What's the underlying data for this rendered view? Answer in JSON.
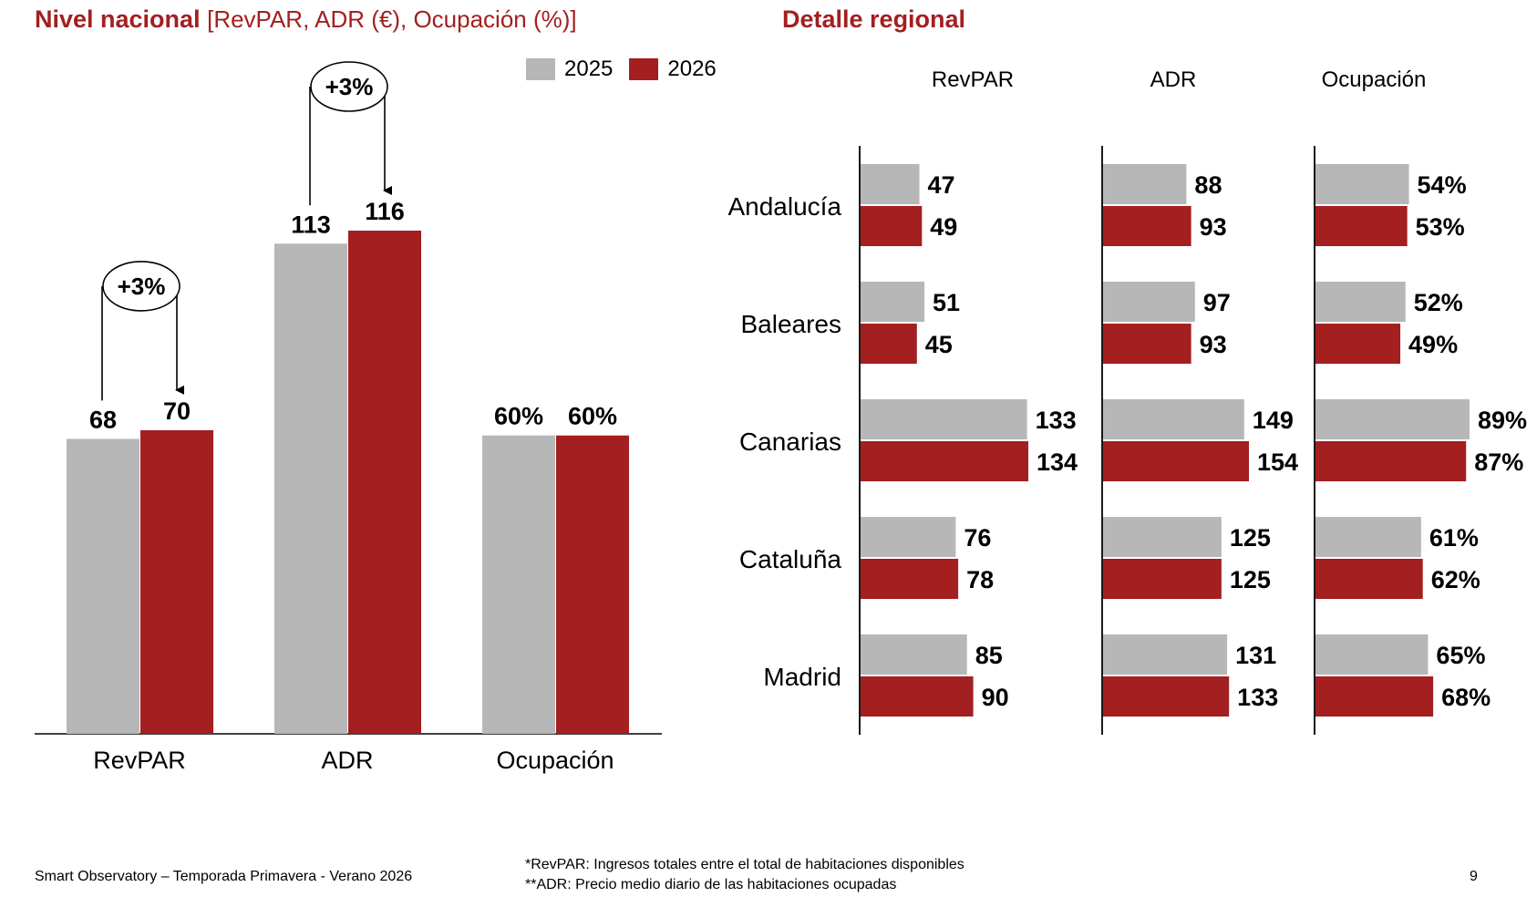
{
  "titles": {
    "national_bold": "Nivel nacional",
    "national_rest": "[RevPAR, ADR (€), Ocupación (%)]",
    "regional": "Detalle regional"
  },
  "legend": [
    {
      "label": "2025",
      "color": "#b7b7b7"
    },
    {
      "label": "2026",
      "color": "#a31f20"
    }
  ],
  "colors": {
    "y2025": "#b7b7b7",
    "y2026": "#a31f20",
    "accent": "#a31f20"
  },
  "chart_data": [
    {
      "type": "bar",
      "categories": [
        "RevPAR",
        "ADR",
        "Ocupación"
      ],
      "series": [
        {
          "name": "2025",
          "values": [
            68,
            113,
            60
          ],
          "labels": [
            "68",
            "113",
            "60%"
          ]
        },
        {
          "name": "2026",
          "values": [
            70,
            116,
            60
          ],
          "labels": [
            "70",
            "116",
            "60%"
          ]
        }
      ],
      "scale_max": 116,
      "annotations": [
        {
          "category": "RevPAR",
          "text": "+3%"
        },
        {
          "category": "ADR",
          "text": "+3%"
        }
      ]
    },
    {
      "type": "bar",
      "orientation": "horizontal",
      "regions": [
        "Andalucía",
        "Baleares",
        "Canarias",
        "Cataluña",
        "Madrid"
      ],
      "panels": [
        {
          "title": "RevPAR",
          "max": 134,
          "v2025": [
            47,
            51,
            133,
            76,
            85
          ],
          "v2026": [
            49,
            45,
            134,
            78,
            90
          ],
          "l2025": [
            "47",
            "51",
            "133",
            "76",
            "85"
          ],
          "l2026": [
            "49",
            "45",
            "134",
            "78",
            "90"
          ]
        },
        {
          "title": "ADR",
          "max": 154,
          "v2025": [
            88,
            97,
            149,
            125,
            131
          ],
          "v2026": [
            93,
            93,
            154,
            125,
            133
          ],
          "l2025": [
            "88",
            "97",
            "149",
            "125",
            "131"
          ],
          "l2026": [
            "93",
            "93",
            "154",
            "125",
            "133"
          ]
        },
        {
          "title": "Ocupación",
          "max": 89,
          "v2025": [
            54,
            52,
            89,
            61,
            65
          ],
          "v2026": [
            53,
            49,
            87,
            62,
            68
          ],
          "l2025": [
            "54%",
            "52%",
            "89%",
            "61%",
            "65%"
          ],
          "l2026": [
            "53%",
            "49%",
            "87%",
            "62%",
            "68%"
          ]
        }
      ]
    }
  ],
  "footer": {
    "left": "Smart Observatory – Temporada Primavera - Verano 2026",
    "note1": "*RevPAR: Ingresos totales entre el total de habitaciones disponibles",
    "note2": "**ADR: Precio medio diario de las habitaciones ocupadas",
    "page": "9"
  }
}
